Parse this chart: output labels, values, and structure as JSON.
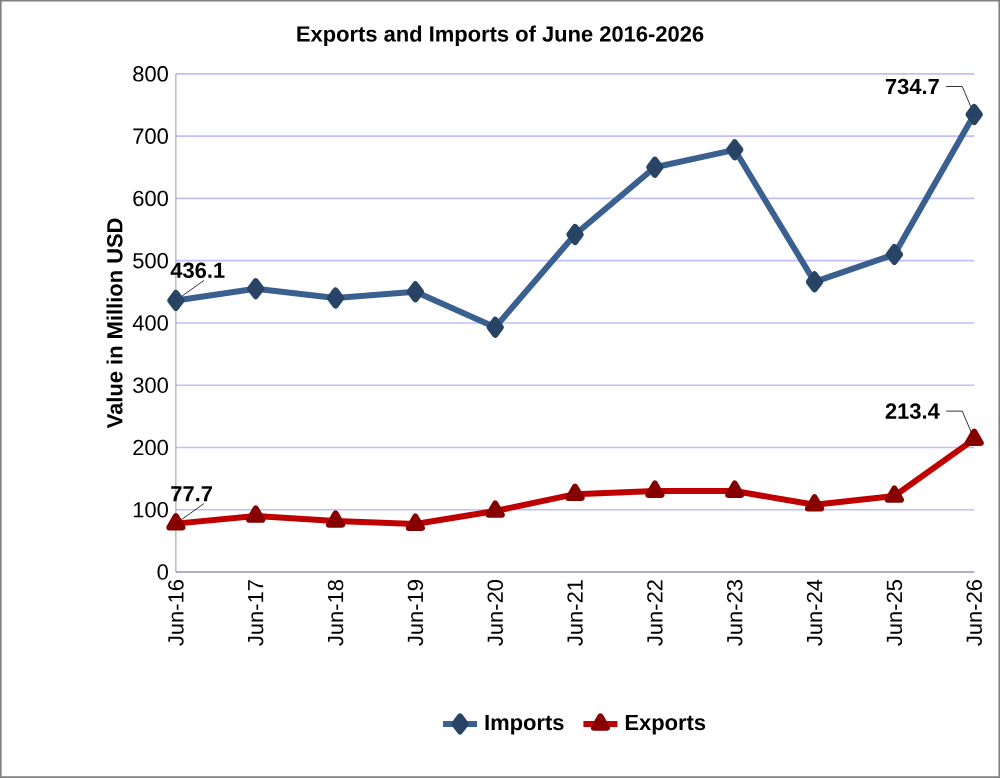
{
  "chart_data": {
    "type": "line",
    "title": "Exports and Imports of June 2016-2026",
    "ylabel": "Value in Million USD",
    "categories": [
      "Jun-16",
      "Jun-17",
      "Jun-18",
      "Jun-19",
      "Jun-20",
      "Jun-21",
      "Jun-22",
      "Jun-23",
      "Jun-24",
      "Jun-25",
      "Jun-26"
    ],
    "series": [
      {
        "name": "Imports",
        "color": "#3a6090",
        "marker": "diamond",
        "values": [
          436.1,
          455,
          440,
          450,
          393,
          542,
          650,
          678,
          466,
          510,
          734.7
        ],
        "value_labels": [
          "436.1",
          null,
          null,
          null,
          null,
          null,
          null,
          null,
          null,
          null,
          "734.7"
        ]
      },
      {
        "name": "Exports",
        "color": "#c00000",
        "marker": "triangle",
        "values": [
          77.7,
          90,
          82,
          77,
          98,
          125,
          130,
          130,
          108,
          122,
          213.4
        ],
        "value_labels": [
          "77.7",
          null,
          null,
          null,
          null,
          null,
          null,
          null,
          null,
          null,
          "213.4"
        ]
      }
    ],
    "ylim": [
      0,
      800
    ],
    "yticks": [
      0,
      100,
      200,
      300,
      400,
      500,
      600,
      700,
      800
    ],
    "grid": "y",
    "legend": "bottom",
    "line_style": "solid"
  }
}
